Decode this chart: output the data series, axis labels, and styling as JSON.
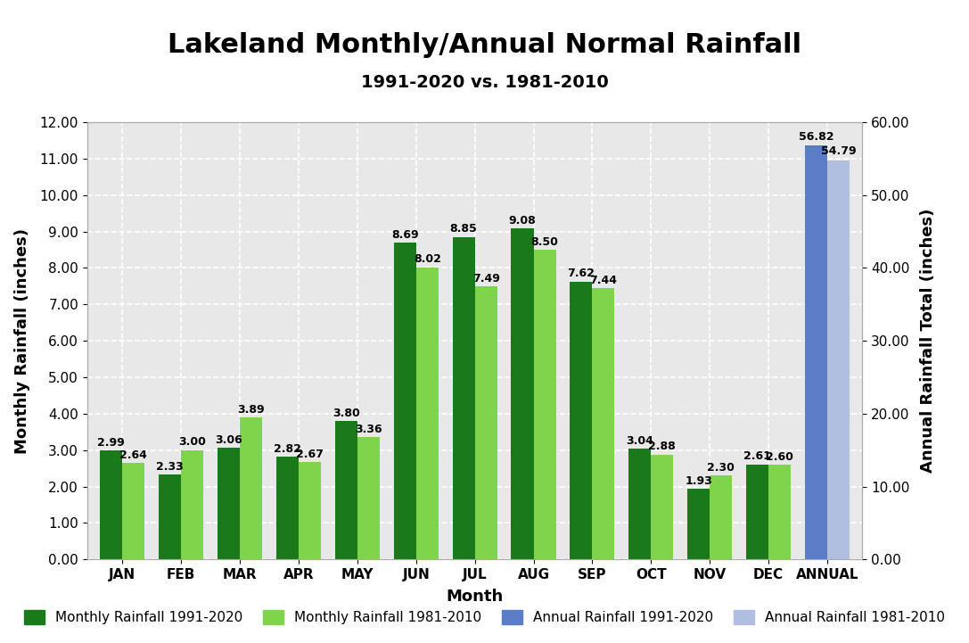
{
  "title": "Lakeland Monthly/Annual Normal Rainfall",
  "subtitle": "1991-2020 vs. 1981-2010",
  "xlabel": "Month",
  "ylabel_left": "Monthly Rainfall (inches)",
  "ylabel_right": "Annual Rainfall Total (inches)",
  "months": [
    "JAN",
    "FEB",
    "MAR",
    "APR",
    "MAY",
    "JUN",
    "JUL",
    "AUG",
    "SEP",
    "OCT",
    "NOV",
    "DEC",
    "ANNUAL"
  ],
  "monthly_1991_2020": [
    2.99,
    2.33,
    3.06,
    2.82,
    3.8,
    8.69,
    8.85,
    9.08,
    7.62,
    3.04,
    1.93,
    2.61
  ],
  "monthly_1981_2010": [
    2.64,
    3.0,
    3.89,
    2.67,
    3.36,
    8.02,
    7.49,
    8.5,
    7.44,
    2.88,
    2.3,
    2.6
  ],
  "annual_1991_2020": 56.82,
  "annual_1981_2010": 54.79,
  "color_monthly_1991_2020": "#1a7a1a",
  "color_monthly_1981_2010": "#7ed44a",
  "color_annual_1991_2020": "#5b7dc8",
  "color_annual_1981_2010": "#b0bedf",
  "ylim_left": [
    0.0,
    12.0
  ],
  "ylim_right": [
    0.0,
    60.0
  ],
  "yticks_left": [
    0.0,
    1.0,
    2.0,
    3.0,
    4.0,
    5.0,
    6.0,
    7.0,
    8.0,
    9.0,
    10.0,
    11.0,
    12.0
  ],
  "yticks_right": [
    0.0,
    10.0,
    20.0,
    30.0,
    40.0,
    50.0,
    60.0
  ],
  "legend_labels": [
    "Monthly Rainfall 1991-2020",
    "Monthly Rainfall 1981-2010",
    "Annual Rainfall 1991-2020",
    "Annual Rainfall 1981-2010"
  ],
  "bar_width": 0.38,
  "background_color": "#e8e8e8",
  "grid_color": "#ffffff",
  "title_fontsize": 22,
  "subtitle_fontsize": 14,
  "label_fontsize": 13,
  "tick_fontsize": 11,
  "annotation_fontsize": 9,
  "legend_fontsize": 11
}
